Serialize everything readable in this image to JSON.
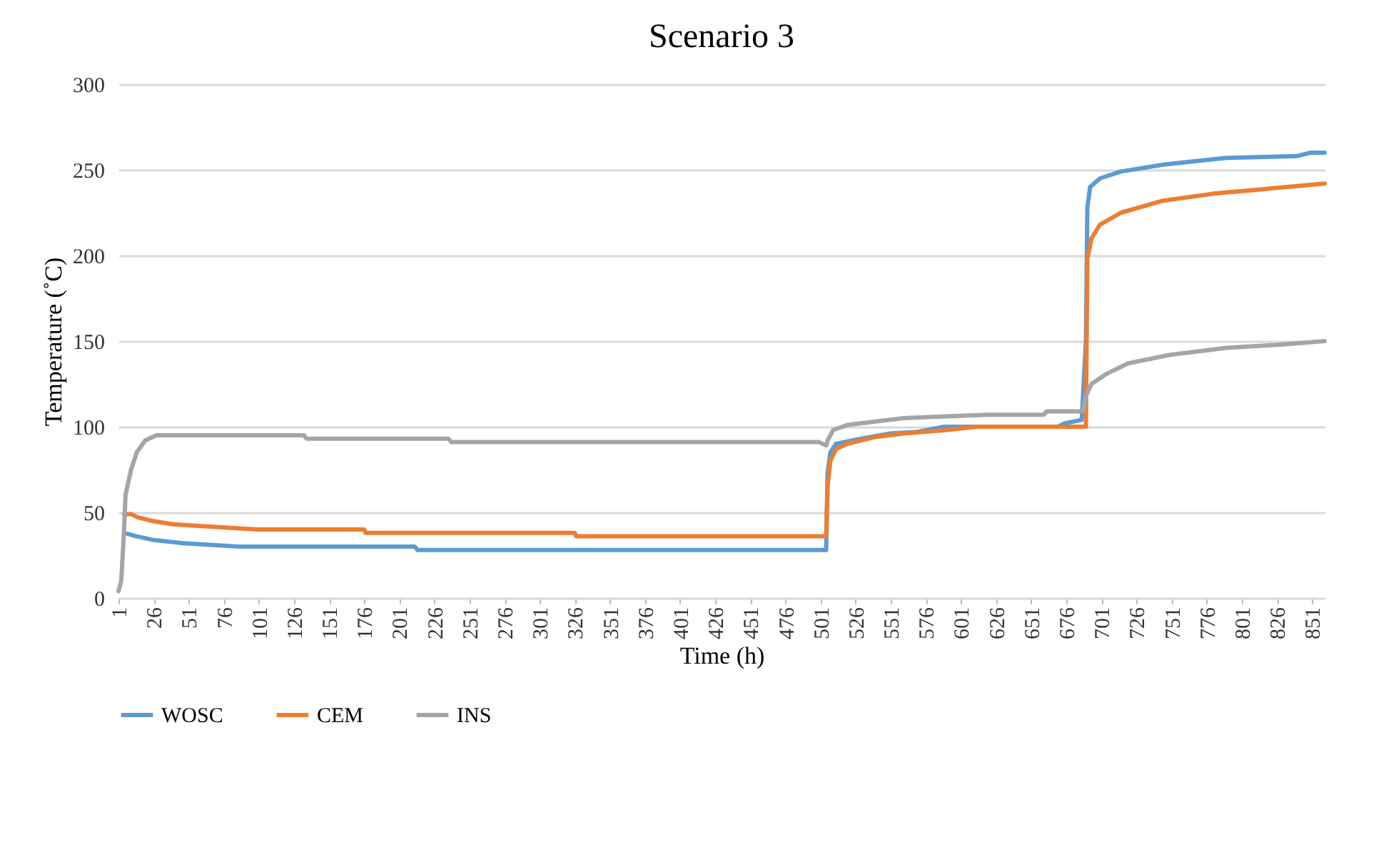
{
  "chart_data": {
    "type": "line",
    "title": "Scenario 3",
    "xlabel": "Time (h)",
    "ylabel": "Temperature (˚C)",
    "xlim": [
      1,
      860
    ],
    "xticks": [
      1,
      26,
      51,
      76,
      101,
      126,
      151,
      176,
      201,
      226,
      251,
      276,
      301,
      326,
      351,
      376,
      401,
      426,
      451,
      476,
      501,
      526,
      551,
      576,
      601,
      626,
      651,
      676,
      701,
      726,
      751,
      776,
      801,
      826,
      851
    ],
    "ylim": [
      0,
      300
    ],
    "yticks": [
      0,
      50,
      100,
      150,
      200,
      250,
      300
    ],
    "grid": "y",
    "legend": "bottom",
    "marker": "none",
    "line_style": "solid",
    "series": [
      {
        "name": "WOSC",
        "color": "#5b9bd5",
        "x": [
          5,
          14,
          25,
          47,
          87,
          212,
          214,
          505,
          506,
          508,
          512,
          530,
          550,
          570,
          589,
          670,
          675,
          687,
          690,
          691,
          693,
          700,
          715,
          745,
          790,
          840,
          850,
          860
        ],
        "values": [
          38,
          36,
          34,
          32,
          30,
          30,
          28,
          28,
          73,
          85,
          90,
          93,
          96,
          97,
          100,
          100,
          102,
          104,
          150,
          228,
          240,
          245,
          249,
          253,
          257,
          258,
          260,
          260
        ]
      },
      {
        "name": "CEM",
        "color": "#ed7d31",
        "x": [
          5,
          10,
          15,
          25,
          40,
          60,
          100,
          176,
          177,
          326,
          327,
          505,
          506,
          508,
          512,
          520,
          540,
          560,
          590,
          612,
          690,
          691,
          694,
          700,
          715,
          745,
          780,
          820,
          860
        ],
        "values": [
          49,
          49,
          47,
          45,
          43,
          42,
          40,
          40,
          38,
          38,
          36,
          36,
          65,
          80,
          87,
          90,
          94,
          96,
          98,
          100,
          100,
          198,
          210,
          218,
          225,
          232,
          236,
          239,
          242
        ]
      },
      {
        "name": "INS",
        "color": "#a5a5a5",
        "x": [
          1,
          3,
          5,
          6,
          10,
          14,
          20,
          28,
          133,
          135,
          236,
          238,
          500,
          505,
          506,
          510,
          520,
          540,
          560,
          590,
          620,
          660,
          662,
          688,
          690,
          694,
          705,
          720,
          750,
          790,
          830,
          860
        ],
        "values": [
          4,
          10,
          40,
          60,
          75,
          85,
          92,
          95,
          95,
          93,
          93,
          91,
          91,
          89,
          92,
          98,
          101,
          103,
          105,
          106,
          107,
          107,
          109,
          109,
          118,
          125,
          131,
          137,
          142,
          146,
          148,
          150
        ]
      }
    ]
  }
}
